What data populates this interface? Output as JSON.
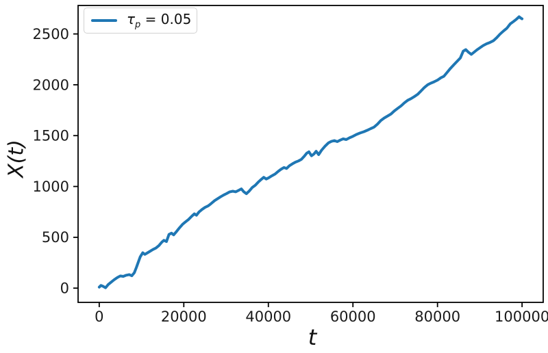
{
  "figure": {
    "background": "#ffffff",
    "text_color": "#1a1a1a",
    "spine_color": "#000000"
  },
  "legend": {
    "entries": [
      {
        "symbol": "τ",
        "subscript": "p",
        "suffix": " = 0.05",
        "color": "#1f77b4"
      }
    ]
  },
  "chart_data": {
    "type": "line",
    "title": "",
    "xlabel": "t",
    "ylabel": "X(t)",
    "xlim": [
      -5000,
      105000
    ],
    "ylim": [
      -140,
      2780
    ],
    "x_ticks": [
      "0",
      "20000",
      "40000",
      "60000",
      "80000",
      "100000"
    ],
    "x_tick_values": [
      0,
      20000,
      40000,
      60000,
      80000,
      100000
    ],
    "y_ticks": [
      "0",
      "500",
      "1000",
      "1500",
      "2000",
      "2500"
    ],
    "y_tick_values": [
      0,
      500,
      1000,
      1500,
      2000,
      2500
    ],
    "grid": false,
    "legend_position": "upper left",
    "series": [
      {
        "name": "τ_p = 0.05",
        "color": "#1f77b4",
        "line_width": 4,
        "points": [
          [
            0,
            10
          ],
          [
            400,
            26
          ],
          [
            900,
            18
          ],
          [
            1500,
            4
          ],
          [
            2100,
            34
          ],
          [
            2800,
            58
          ],
          [
            3500,
            82
          ],
          [
            4300,
            105
          ],
          [
            5000,
            120
          ],
          [
            5700,
            116
          ],
          [
            6400,
            127
          ],
          [
            7100,
            133
          ],
          [
            7700,
            122
          ],
          [
            8300,
            152
          ],
          [
            8800,
            205
          ],
          [
            9200,
            252
          ],
          [
            9700,
            308
          ],
          [
            10300,
            348
          ],
          [
            10800,
            332
          ],
          [
            11400,
            347
          ],
          [
            12000,
            362
          ],
          [
            12700,
            380
          ],
          [
            13400,
            394
          ],
          [
            14100,
            418
          ],
          [
            14800,
            452
          ],
          [
            15300,
            470
          ],
          [
            15900,
            458
          ],
          [
            16500,
            528
          ],
          [
            17100,
            541
          ],
          [
            17600,
            524
          ],
          [
            18300,
            558
          ],
          [
            19000,
            594
          ],
          [
            19700,
            628
          ],
          [
            20400,
            652
          ],
          [
            21100,
            675
          ],
          [
            21900,
            708
          ],
          [
            22500,
            731
          ],
          [
            23000,
            717
          ],
          [
            23600,
            749
          ],
          [
            24300,
            774
          ],
          [
            25000,
            794
          ],
          [
            25800,
            810
          ],
          [
            26500,
            833
          ],
          [
            27300,
            861
          ],
          [
            28000,
            880
          ],
          [
            28700,
            898
          ],
          [
            29400,
            915
          ],
          [
            30100,
            930
          ],
          [
            30800,
            946
          ],
          [
            31600,
            953
          ],
          [
            32300,
            947
          ],
          [
            33000,
            963
          ],
          [
            33600,
            976
          ],
          [
            34200,
            947
          ],
          [
            34800,
            929
          ],
          [
            35500,
            956
          ],
          [
            36200,
            990
          ],
          [
            36900,
            1011
          ],
          [
            37600,
            1043
          ],
          [
            38200,
            1066
          ],
          [
            38900,
            1090
          ],
          [
            39500,
            1073
          ],
          [
            40100,
            1086
          ],
          [
            40800,
            1104
          ],
          [
            41600,
            1122
          ],
          [
            42300,
            1148
          ],
          [
            43000,
            1169
          ],
          [
            43700,
            1186
          ],
          [
            44300,
            1177
          ],
          [
            45000,
            1204
          ],
          [
            45700,
            1223
          ],
          [
            46400,
            1239
          ],
          [
            47100,
            1251
          ],
          [
            47800,
            1266
          ],
          [
            48500,
            1297
          ],
          [
            49100,
            1328
          ],
          [
            49600,
            1341
          ],
          [
            50200,
            1302
          ],
          [
            50800,
            1320
          ],
          [
            51300,
            1346
          ],
          [
            51900,
            1313
          ],
          [
            52600,
            1357
          ],
          [
            53400,
            1396
          ],
          [
            54200,
            1428
          ],
          [
            54900,
            1443
          ],
          [
            55600,
            1451
          ],
          [
            56300,
            1441
          ],
          [
            57000,
            1456
          ],
          [
            57700,
            1469
          ],
          [
            58400,
            1461
          ],
          [
            59200,
            1479
          ],
          [
            60000,
            1493
          ],
          [
            60800,
            1511
          ],
          [
            61700,
            1526
          ],
          [
            62600,
            1539
          ],
          [
            63400,
            1553
          ],
          [
            64200,
            1569
          ],
          [
            65000,
            1584
          ],
          [
            65800,
            1613
          ],
          [
            66600,
            1649
          ],
          [
            67400,
            1673
          ],
          [
            68200,
            1693
          ],
          [
            69000,
            1713
          ],
          [
            69800,
            1743
          ],
          [
            70600,
            1769
          ],
          [
            71400,
            1793
          ],
          [
            72200,
            1823
          ],
          [
            73000,
            1849
          ],
          [
            73700,
            1863
          ],
          [
            74500,
            1883
          ],
          [
            75300,
            1906
          ],
          [
            76100,
            1939
          ],
          [
            76900,
            1973
          ],
          [
            77700,
            2001
          ],
          [
            78400,
            2016
          ],
          [
            79200,
            2029
          ],
          [
            80000,
            2046
          ],
          [
            80800,
            2069
          ],
          [
            81500,
            2083
          ],
          [
            82300,
            2123
          ],
          [
            83100,
            2163
          ],
          [
            83900,
            2199
          ],
          [
            84700,
            2233
          ],
          [
            85400,
            2263
          ],
          [
            86100,
            2331
          ],
          [
            86700,
            2346
          ],
          [
            87300,
            2321
          ],
          [
            88000,
            2299
          ],
          [
            88600,
            2319
          ],
          [
            89300,
            2343
          ],
          [
            90000,
            2363
          ],
          [
            90800,
            2386
          ],
          [
            91600,
            2403
          ],
          [
            92400,
            2416
          ],
          [
            93200,
            2433
          ],
          [
            94000,
            2463
          ],
          [
            94800,
            2499
          ],
          [
            95600,
            2529
          ],
          [
            96400,
            2556
          ],
          [
            97200,
            2599
          ],
          [
            98000,
            2623
          ],
          [
            98700,
            2646
          ],
          [
            99300,
            2669
          ],
          [
            99700,
            2656
          ],
          [
            100000,
            2649
          ]
        ]
      }
    ]
  }
}
